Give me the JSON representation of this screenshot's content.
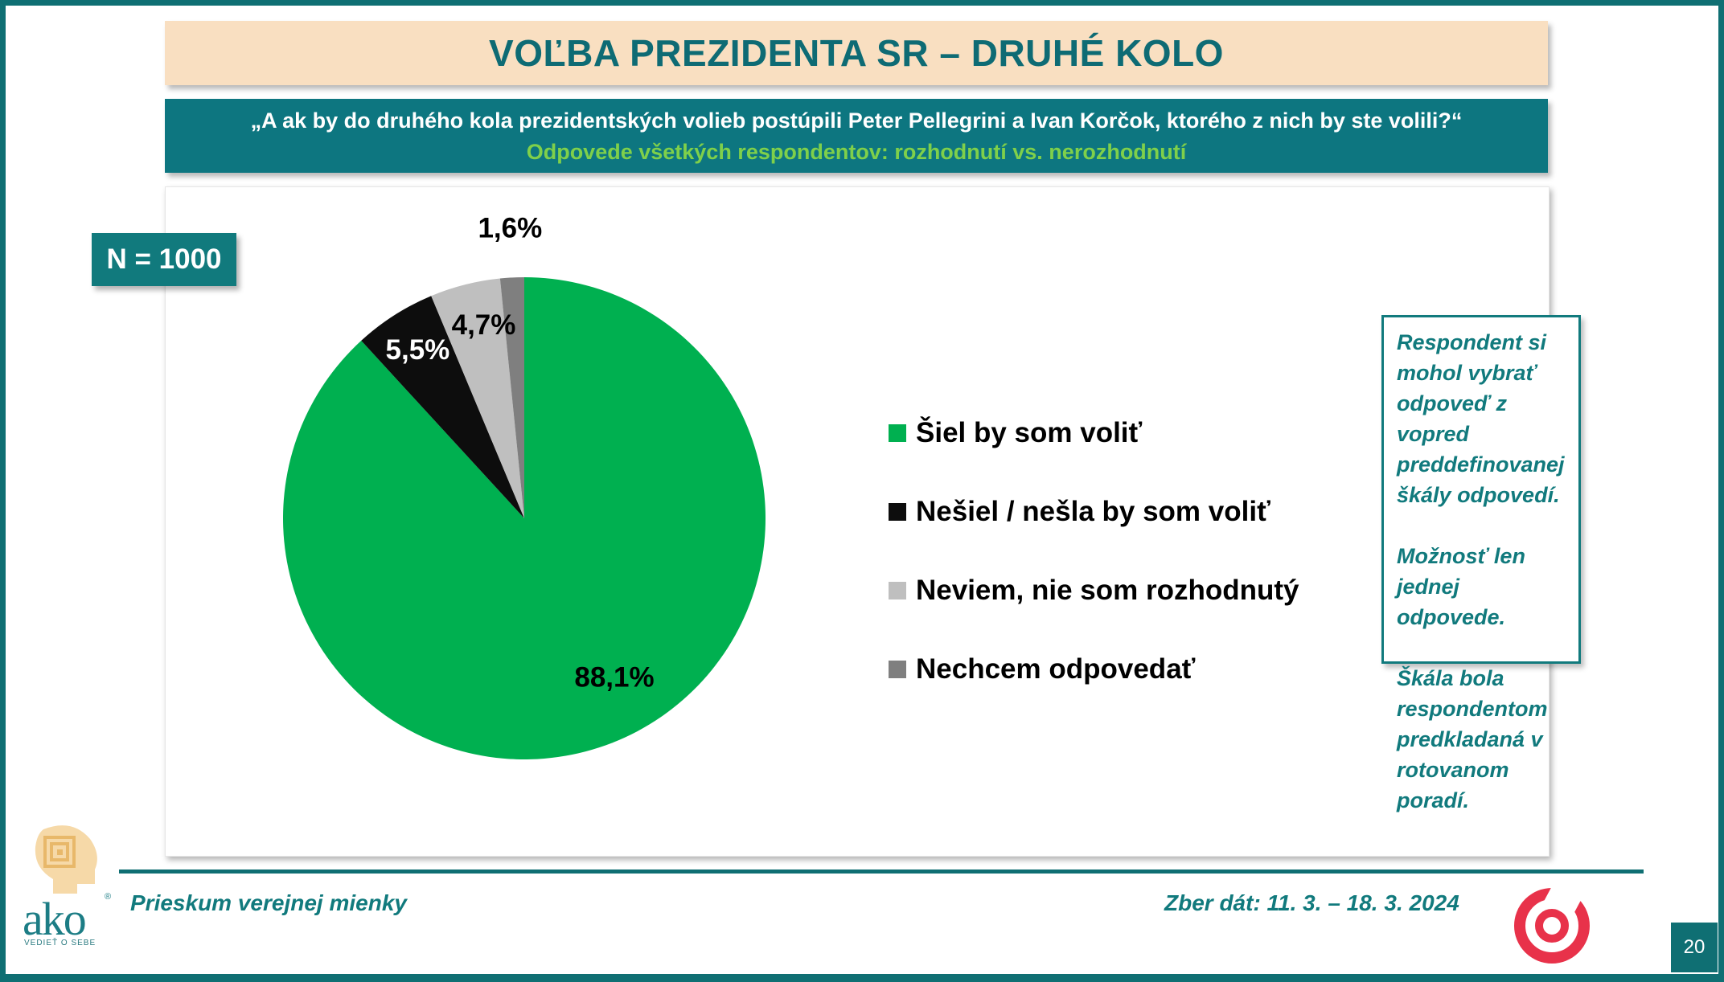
{
  "header": {
    "title": "VOĽBA PREZIDENTA SR – DRUHÉ KOLO",
    "question": "„A ak by do druhého kola prezidentských volieb postúpili Peter Pellegrini a Ivan Korčok, ktorého z nich by ste volili?“",
    "subtitle": "Odpovede všetkých respondentov: rozhodnutí vs. nerozhodnutí"
  },
  "badge": {
    "n_label": "N = 1000"
  },
  "chart_data": {
    "type": "pie",
    "categories": [
      "Šiel by som voliť",
      "Nešiel / nešla by som voliť",
      "Neviem, nie som rozhodnutý",
      "Nechcem odpovedať"
    ],
    "values": [
      88.1,
      5.5,
      4.7,
      1.6
    ],
    "value_labels": [
      "88,1%",
      "5,5%",
      "4,7%",
      "1,6%"
    ],
    "colors": [
      "#00b050",
      "#0d0d0d",
      "#bfbfbf",
      "#7f7f7f"
    ],
    "label_colors": [
      "#000000",
      "#ffffff",
      "#000000",
      "#000000"
    ],
    "start": "12 o'clock, clockwise",
    "legend_position": "right"
  },
  "note": {
    "paragraphs": [
      "Respondent si mohol vybrať odpoveď z vopred preddefinovanej škály odpovedí.",
      "Možnosť len jednej odpovede.",
      "Škála bola respondentom predkladaná v rotovanom poradí."
    ]
  },
  "footer": {
    "left": "Prieskum verejnej mienky",
    "right": "Zber dát: 11. 3. – 18. 3. 2024",
    "page_number": "20"
  },
  "logos": {
    "ako_word": "ako",
    "ako_tagline": "VEDIEŤ O SEBE"
  }
}
